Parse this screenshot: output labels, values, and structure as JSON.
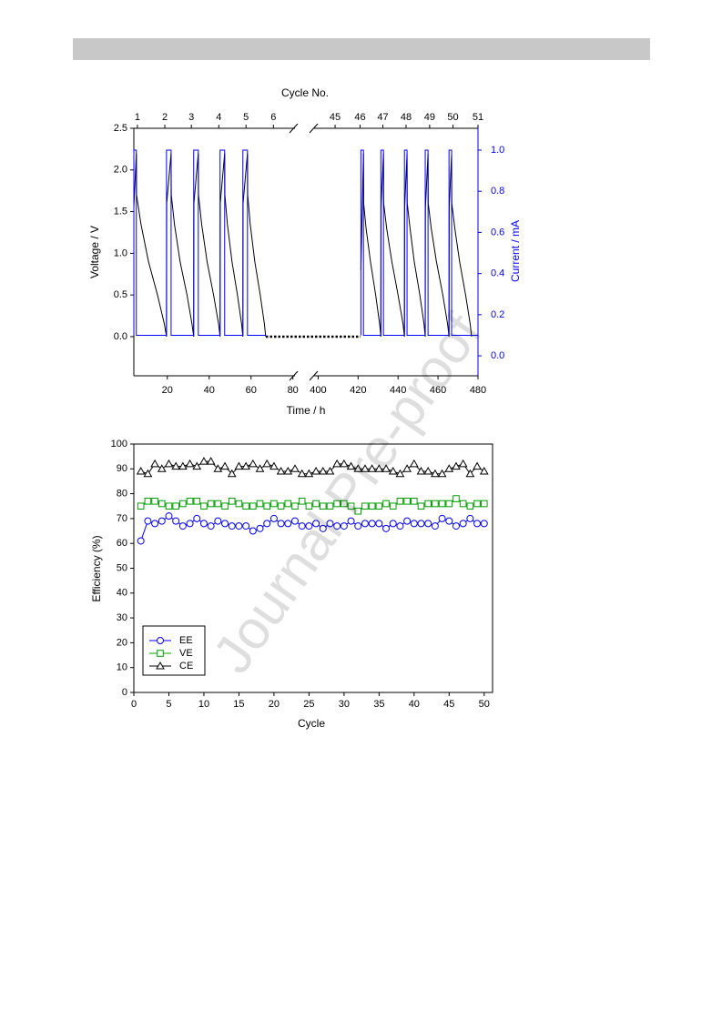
{
  "watermark": "Journal Pre-proof",
  "chart_data": [
    {
      "type": "line",
      "x2label": "Cycle No.",
      "xlabel": "Time / h",
      "ylabel": "Voltage / V",
      "y2label": "Current / mA",
      "y2color": "#0000ff",
      "x_segments": [
        {
          "xlim": [
            4,
            81
          ],
          "xticks": [
            20,
            40,
            60,
            80
          ]
        },
        {
          "xlim": [
            398,
            480
          ],
          "xticks": [
            400,
            420,
            440,
            460,
            480
          ]
        }
      ],
      "x2ticks": [
        {
          "value": 5.7,
          "label": "1"
        },
        {
          "value": 18.8,
          "label": "2"
        },
        {
          "value": 31.5,
          "label": "3"
        },
        {
          "value": 44.6,
          "label": "4"
        },
        {
          "value": 57.6,
          "label": "5"
        },
        {
          "value": 70.7,
          "label": "6"
        },
        {
          "value": 408.5,
          "label": "45"
        },
        {
          "value": 421,
          "label": "46"
        },
        {
          "value": 432.4,
          "label": "47"
        },
        {
          "value": 444,
          "label": "48"
        },
        {
          "value": 455.8,
          "label": "49"
        },
        {
          "value": 467.5,
          "label": "50"
        },
        {
          "value": 480,
          "label": "51"
        }
      ],
      "ylim": [
        -0.47,
        2.5
      ],
      "yticks": [
        {
          "value": 0,
          "label": "0.0"
        },
        0.5,
        {
          "value": 1,
          "label": "1.0"
        },
        1.5,
        {
          "value": 2,
          "label": "2.0"
        },
        2.5
      ],
      "y2lim": [
        -0.097,
        1.106
      ],
      "y2ticks": [
        {
          "value": 0,
          "label": "0.0"
        },
        0.2,
        0.4,
        0.6,
        0.8,
        {
          "value": 1,
          "label": "1.0"
        }
      ],
      "series": [
        {
          "color": "#000000",
          "x": [
            4.0,
            5.2,
            5.3,
            7.4,
            11.0,
            15.3,
            18.6,
            19.6,
            19.7,
            21.8,
            21.9,
            23.4,
            26.1,
            29.4,
            31.8,
            32.6,
            32.7,
            34.8,
            34.9,
            36.4,
            39.0,
            42.1,
            44.5,
            45.2,
            45.3,
            47.4,
            47.5,
            48.7,
            50.9,
            53.5,
            55.5,
            56.1,
            56.2,
            58.3,
            58.4,
            59.6,
            61.8,
            64.4,
            66.4,
            67.0,
            null,
            421.4,
            422.7,
            422.8,
            424.0,
            426.2,
            428.8,
            430.8,
            431.4,
            431.5,
            432.7,
            432.8,
            434.3,
            436.9,
            440.0,
            442.5,
            443.2,
            443.3,
            444.5,
            444.6,
            446.0,
            448.1,
            450.9,
            453.0,
            453.6,
            453.7,
            455.0,
            455.1,
            456.6,
            459.2,
            462.4,
            464.8,
            465.5,
            465.6,
            466.8,
            466.9,
            468.4,
            470.8,
            473.8,
            476.1,
            476.8
          ],
          "values": [
            1.55,
            2.2,
            1.7,
            1.35,
            0.9,
            0.5,
            0.15,
            0,
            1.6,
            2.2,
            1.7,
            1.35,
            0.9,
            0.5,
            0.15,
            0,
            1.6,
            2.2,
            1.7,
            1.35,
            0.9,
            0.5,
            0.15,
            0,
            1.6,
            2.2,
            1.7,
            1.35,
            0.9,
            0.5,
            0.15,
            0,
            1.6,
            2.2,
            1.7,
            1.35,
            0.9,
            0.5,
            0.15,
            0,
            null,
            0.8,
            2.2,
            1.6,
            1.3,
            0.9,
            0.5,
            0.15,
            0,
            1.55,
            2.2,
            1.6,
            1.3,
            0.9,
            0.5,
            0.15,
            0,
            1.55,
            2.2,
            1.6,
            1.3,
            0.9,
            0.5,
            0.15,
            0,
            1.55,
            2.2,
            1.6,
            1.3,
            0.9,
            0.5,
            0.15,
            0,
            1.55,
            2.2,
            1.6,
            1.3,
            0.9,
            0.5,
            0.15,
            0
          ]
        },
        {
          "color": "#0000ff",
          "axis": "y2",
          "x": [
            4.0,
            4.0,
            5.2,
            5.2,
            19.6,
            19.6,
            21.8,
            21.8,
            32.6,
            32.6,
            34.8,
            34.8,
            45.2,
            45.2,
            47.4,
            47.4,
            56.1,
            56.1,
            58.3,
            58.3,
            67.0,
            null,
            421.4,
            421.4,
            422.7,
            422.7,
            431.4,
            431.4,
            432.7,
            432.7,
            443.2,
            443.2,
            444.5,
            444.5,
            453.6,
            453.6,
            455.0,
            455.0,
            465.5,
            465.5,
            466.8,
            466.8,
            480
          ],
          "values": [
            0.1,
            1.0,
            1.0,
            0.1,
            0.1,
            1.0,
            1.0,
            0.1,
            0.1,
            1.0,
            1.0,
            0.1,
            0.1,
            1.0,
            1.0,
            0.1,
            0.1,
            1.0,
            1.0,
            0.1,
            0.1,
            null,
            0.1,
            1.0,
            1.0,
            0.1,
            0.1,
            1.0,
            1.0,
            0.1,
            0.1,
            1.0,
            1.0,
            0.1,
            0.1,
            1.0,
            1.0,
            0.1,
            0.1,
            1.0,
            1.0,
            0.1,
            0.1
          ]
        }
      ]
    },
    {
      "type": "line",
      "xlabel": "Cycle",
      "ylabel": "Efficiency (%)",
      "xlim": [
        0,
        51.2
      ],
      "xticks": [
        0,
        5,
        10,
        15,
        20,
        25,
        30,
        35,
        40,
        45,
        50
      ],
      "ylim": [
        0,
        100
      ],
      "yticks": [
        0,
        10,
        20,
        30,
        40,
        50,
        60,
        70,
        80,
        90,
        100
      ],
      "legend": "lower left",
      "x": [
        1,
        2,
        3,
        4,
        5,
        6,
        7,
        8,
        9,
        10,
        11,
        12,
        13,
        14,
        15,
        16,
        17,
        18,
        19,
        20,
        21,
        22,
        23,
        24,
        25,
        26,
        27,
        28,
        29,
        30,
        31,
        32,
        33,
        34,
        35,
        36,
        37,
        38,
        39,
        40,
        41,
        42,
        43,
        44,
        45,
        46,
        47,
        48,
        49,
        50
      ],
      "series": [
        {
          "name": "EE",
          "color": "#0000ff",
          "marker": "circle",
          "values": [
            61,
            69,
            68,
            69,
            71,
            69,
            67,
            68,
            70,
            68,
            67,
            69,
            68,
            67,
            67,
            67,
            65,
            66,
            68,
            70,
            68,
            68,
            69,
            67,
            67,
            68,
            66,
            68,
            67,
            67,
            69,
            67,
            68,
            68,
            68,
            66,
            68,
            67,
            69,
            68,
            68,
            68,
            67,
            70,
            69,
            67,
            68,
            70,
            68,
            68
          ]
        },
        {
          "name": "VE",
          "color": "#00a000",
          "marker": "square",
          "values": [
            75,
            77,
            77,
            76,
            75,
            75,
            76,
            77,
            77,
            75,
            76,
            76,
            75,
            77,
            76,
            75,
            75,
            76,
            75,
            76,
            75,
            76,
            75,
            77,
            75,
            76,
            75,
            75,
            76,
            76,
            75,
            73,
            75,
            75,
            75,
            76,
            75,
            77,
            77,
            77,
            75,
            76,
            76,
            76,
            76,
            78,
            76,
            75,
            76,
            76
          ]
        },
        {
          "name": "CE",
          "color": "#000000",
          "marker": "triangle",
          "values": [
            89,
            88,
            92,
            90,
            92,
            91,
            91,
            92,
            91,
            93,
            93,
            90,
            91,
            88,
            91,
            91,
            92,
            90,
            92,
            91,
            89,
            89,
            90,
            88,
            88,
            89,
            89,
            89,
            92,
            92,
            91,
            90,
            90,
            90,
            90,
            90,
            89,
            88,
            90,
            92,
            89,
            89,
            88,
            88,
            90,
            91,
            92,
            88,
            91,
            89
          ]
        }
      ]
    }
  ]
}
